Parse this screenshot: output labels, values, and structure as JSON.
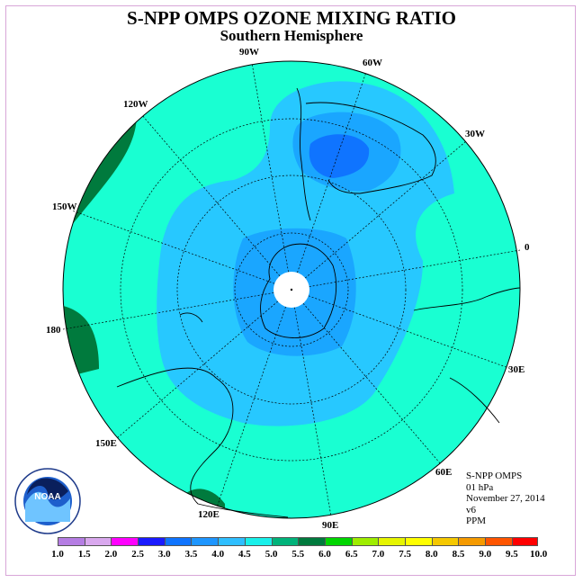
{
  "title": "S-NPP OMPS OZONE MIXING RATIO",
  "subtitle": "Southern Hemisphere",
  "info": {
    "instrument": "S-NPP OMPS",
    "level": "01 hPa",
    "date": "November 27, 2014",
    "version": "v6",
    "units": "PPM"
  },
  "logo_text": "NOAA",
  "longitude_labels": [
    "90W",
    "60W",
    "30W",
    "0",
    "30E",
    "60E",
    "90E",
    "120E",
    "150E",
    "180",
    "150W",
    "120W"
  ],
  "colorbar": {
    "ticks": [
      "1.0",
      "1.5",
      "2.0",
      "2.5",
      "3.0",
      "3.5",
      "4.0",
      "4.5",
      "5.0",
      "5.5",
      "6.0",
      "6.5",
      "7.0",
      "7.5",
      "8.0",
      "8.5",
      "9.0",
      "9.5",
      "10.0"
    ],
    "colors": [
      "#b57de3",
      "#d9a8ee",
      "#ff00ff",
      "#1a1aff",
      "#0f74ff",
      "#1e96ff",
      "#2fbfff",
      "#19f0ea",
      "#00b37a",
      "#007a3d",
      "#00d600",
      "#9eed00",
      "#e6f500",
      "#ffff00",
      "#f5c800",
      "#f59a00",
      "#ff5500",
      "#ff0000",
      "#80503c"
    ]
  },
  "colors": {
    "ocean_field": "#19ffd2",
    "contour_45": "#27c8ff",
    "contour_40": "#1aa6ff",
    "contour_35": "#118aff",
    "contour_30": "#0f68ff",
    "contour_55": "#007a3d"
  }
}
